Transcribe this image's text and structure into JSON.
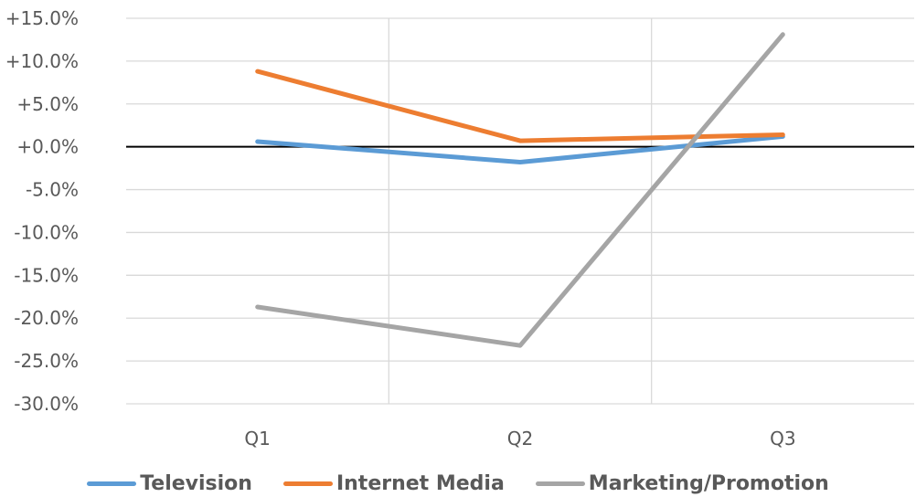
{
  "chart_data": {
    "type": "line",
    "categories": [
      "Q1",
      "Q2",
      "Q3"
    ],
    "series": [
      {
        "name": "Television",
        "color": "#5B9BD5",
        "values": [
          0.6,
          -1.8,
          1.2
        ]
      },
      {
        "name": "Internet Media",
        "color": "#ED7D31",
        "values": [
          8.8,
          0.7,
          1.4
        ]
      },
      {
        "name": "Marketing/Promotion",
        "color": "#A5A5A5",
        "values": [
          -18.7,
          -23.2,
          13.1
        ]
      }
    ],
    "ylim": [
      -30,
      15
    ],
    "yticks": [
      15,
      10,
      5,
      0,
      -5,
      -10,
      -15,
      -20,
      -25,
      -30
    ],
    "ytick_labels": [
      "+15.0%",
      "+10.0%",
      "+5.0%",
      "+0.0%",
      "-5.0%",
      "-10.0%",
      "-15.0%",
      "-20.0%",
      "-25.0%",
      "-30.0%"
    ],
    "grid": true,
    "legend_position": "bottom"
  }
}
